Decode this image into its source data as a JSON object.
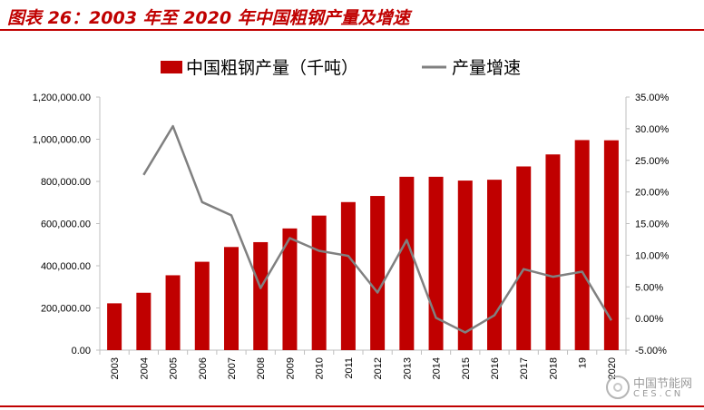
{
  "title": "图表 26：2003 年至 2020 年中国粗钢产量及增速",
  "watermark": {
    "text": "中国节能网",
    "sub": "CES.CN"
  },
  "colors": {
    "bar": "#c00000",
    "line": "#808080",
    "axis": "#bfbfbf",
    "title": "#c00000"
  },
  "chart_data": {
    "type": "bar",
    "title": "",
    "categories": [
      "2003",
      "2004",
      "2005",
      "2006",
      "2007",
      "2008",
      "2009",
      "2010",
      "2011",
      "2012",
      "2013",
      "2014",
      "2015",
      "2016",
      "2017",
      "2018",
      "2019",
      "2020"
    ],
    "category_labels": [
      "2003",
      "2004",
      "2005",
      "2006",
      "2007",
      "2008",
      "2009",
      "2010",
      "2011",
      "2012",
      "2013",
      "2014",
      "2015",
      "2016",
      "2017",
      "2018",
      "19",
      "2020"
    ],
    "series": [
      {
        "name": "中国粗钢产量（千吨）",
        "type": "bar",
        "axis": "left",
        "values": [
          222000,
          272000,
          355000,
          419000,
          489000,
          512000,
          577000,
          638000,
          702000,
          731000,
          822000,
          822000,
          804000,
          808000,
          871000,
          928000,
          996000,
          995000
        ]
      },
      {
        "name": "产量增速",
        "type": "line",
        "axis": "right",
        "values": [
          null,
          22.7,
          30.4,
          18.4,
          16.3,
          4.8,
          12.7,
          10.7,
          9.9,
          4.1,
          12.4,
          0.1,
          -2.2,
          0.5,
          7.8,
          6.6,
          7.4,
          -0.3
        ]
      }
    ],
    "y_left": {
      "min": 0,
      "max": 1200000,
      "ticks": [
        "0.00",
        "200,000.00",
        "400,000.00",
        "600,000.00",
        "800,000.00",
        "1,000,000.00",
        "1,200,000.00"
      ]
    },
    "y_right": {
      "min": -5,
      "max": 35,
      "ticks": [
        "-5.00%",
        "0.00%",
        "5.00%",
        "10.00%",
        "15.00%",
        "20.00%",
        "25.00%",
        "30.00%",
        "35.00%"
      ]
    },
    "legend_position": "top",
    "grid": false
  }
}
